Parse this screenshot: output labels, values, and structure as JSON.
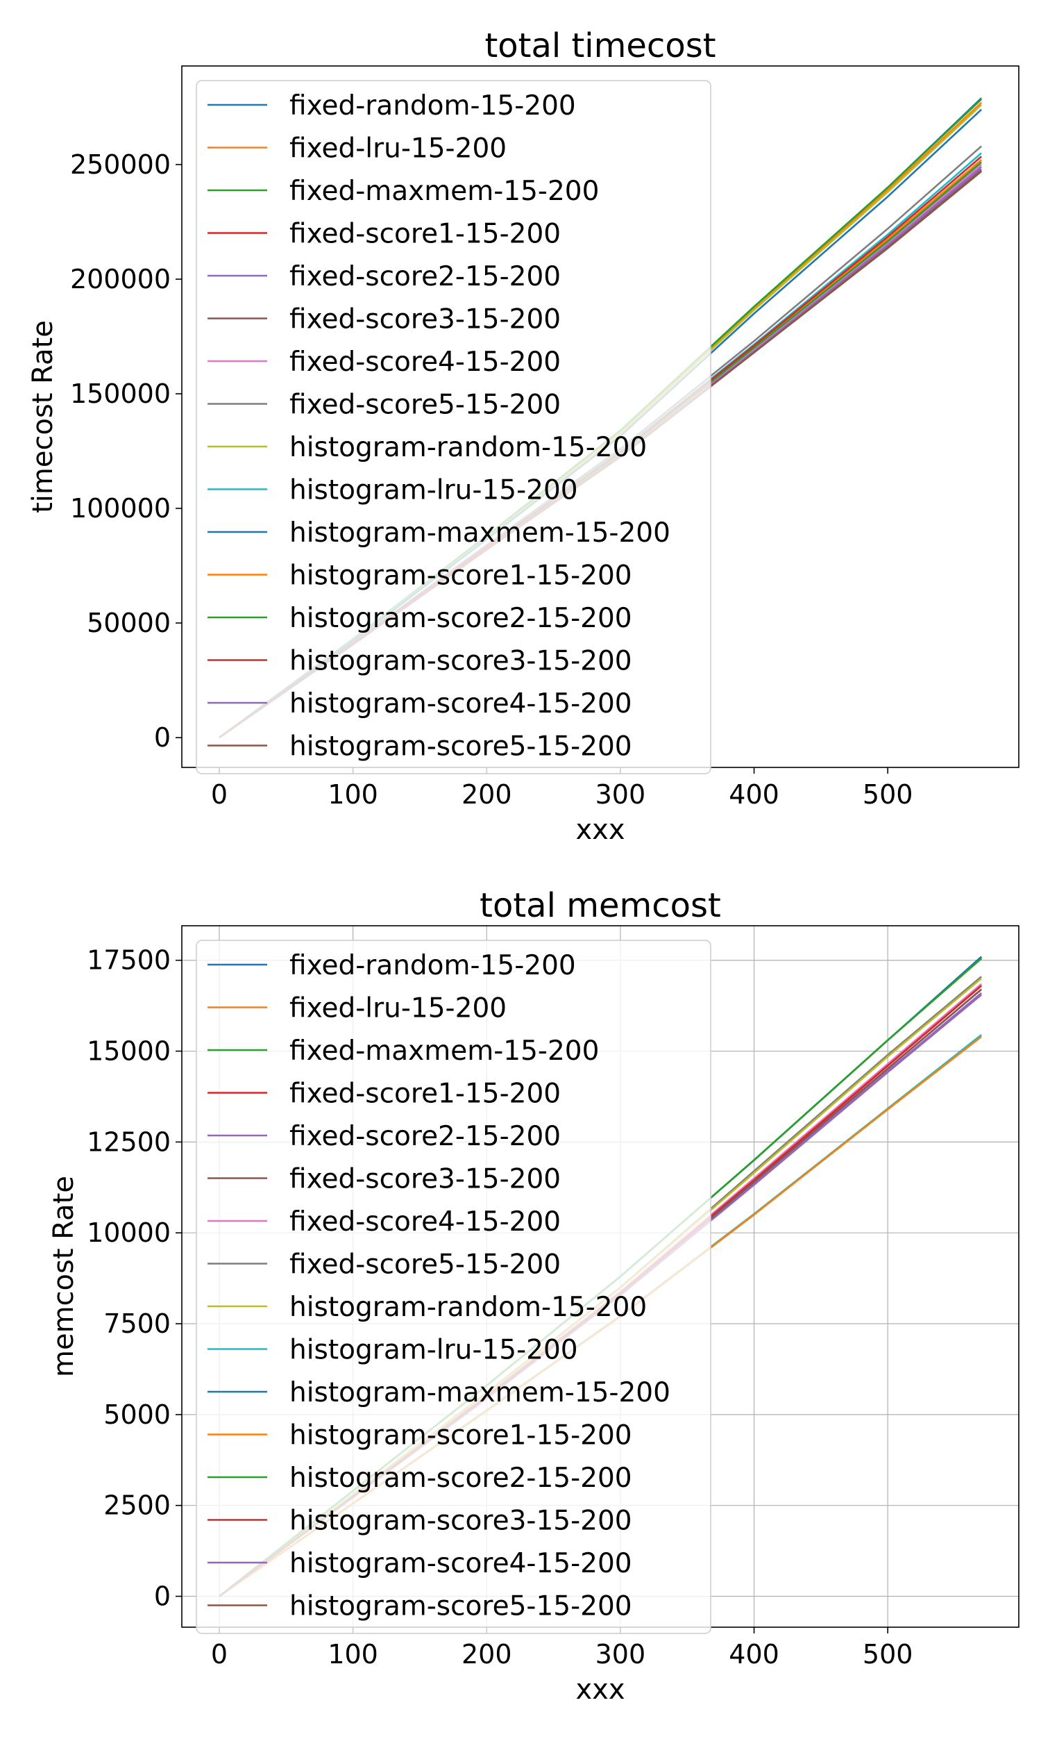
{
  "series_colors": [
    "#1f77b4",
    "#ff7f0e",
    "#2ca02c",
    "#d62728",
    "#9467bd",
    "#8c564b",
    "#e377c2",
    "#7f7f7f",
    "#bcbd22",
    "#17becf",
    "#1f77b4",
    "#ff7f0e",
    "#2ca02c",
    "#d62728",
    "#9467bd",
    "#8c564b"
  ],
  "chart_data": [
    {
      "type": "line",
      "title": "total timecost",
      "xlabel": "xxx",
      "ylabel": "timecost Rate",
      "xlim": [
        -28,
        598
      ],
      "ylim": [
        -13000,
        293000
      ],
      "xticks": [
        0,
        100,
        200,
        300,
        400,
        500
      ],
      "yticks": [
        0,
        50000,
        100000,
        150000,
        200000,
        250000
      ],
      "grid": false,
      "legend_position": "upper left",
      "series": [
        {
          "name": "fixed-random-15-200",
          "x": [
            0,
            100,
            200,
            300,
            400,
            500,
            570
          ],
          "y": [
            0,
            43000,
            88000,
            134000,
            188000,
            240000,
            279000
          ]
        },
        {
          "name": "fixed-lru-15-200",
          "x": [
            0,
            100,
            200,
            300,
            400,
            500,
            570
          ],
          "y": [
            0,
            42800,
            87500,
            133000,
            187000,
            239000,
            277000
          ]
        },
        {
          "name": "fixed-maxmem-15-200",
          "x": [
            0,
            100,
            200,
            300,
            400,
            500,
            570
          ],
          "y": [
            0,
            43000,
            88000,
            134000,
            188000,
            240000,
            278500
          ]
        },
        {
          "name": "fixed-score1-15-200",
          "x": [
            0,
            100,
            200,
            300,
            400,
            500,
            570
          ],
          "y": [
            0,
            41000,
            83000,
            124000,
            170000,
            217000,
            252000
          ]
        },
        {
          "name": "fixed-score2-15-200",
          "x": [
            0,
            100,
            200,
            300,
            400,
            500,
            570
          ],
          "y": [
            0,
            40800,
            82500,
            123000,
            169000,
            215000,
            249000
          ]
        },
        {
          "name": "fixed-score3-15-200",
          "x": [
            0,
            100,
            200,
            300,
            400,
            500,
            570
          ],
          "y": [
            0,
            40600,
            82000,
            122500,
            168000,
            213500,
            247000
          ]
        },
        {
          "name": "fixed-score4-15-200",
          "x": [
            0,
            100,
            200,
            300,
            400,
            500,
            570
          ],
          "y": [
            0,
            40900,
            82700,
            123500,
            169500,
            216000,
            250000
          ]
        },
        {
          "name": "fixed-score5-15-200",
          "x": [
            0,
            100,
            200,
            300,
            400,
            500,
            570
          ],
          "y": [
            0,
            41500,
            84000,
            126000,
            173000,
            222000,
            258000
          ]
        },
        {
          "name": "histogram-random-15-200",
          "x": [
            0,
            100,
            200,
            300,
            400,
            500,
            570
          ],
          "y": [
            0,
            42500,
            87000,
            132500,
            186500,
            238000,
            276000
          ]
        },
        {
          "name": "histogram-lru-15-200",
          "x": [
            0,
            100,
            200,
            300,
            400,
            500,
            570
          ],
          "y": [
            0,
            41200,
            83500,
            125000,
            171500,
            219500,
            255000
          ]
        },
        {
          "name": "histogram-maxmem-15-200",
          "x": [
            0,
            100,
            200,
            300,
            400,
            500,
            570
          ],
          "y": [
            0,
            42300,
            86500,
            131500,
            185000,
            236000,
            274000
          ]
        },
        {
          "name": "histogram-score1-15-200",
          "x": [
            0,
            100,
            200,
            300,
            400,
            500,
            570
          ],
          "y": [
            0,
            41000,
            83000,
            124000,
            170500,
            217500,
            252000
          ]
        },
        {
          "name": "histogram-score2-15-200",
          "x": [
            0,
            100,
            200,
            300,
            400,
            500,
            570
          ],
          "y": [
            0,
            40900,
            82800,
            123800,
            170000,
            216500,
            251000
          ]
        },
        {
          "name": "histogram-score3-15-200",
          "x": [
            0,
            100,
            200,
            300,
            400,
            500,
            570
          ],
          "y": [
            0,
            41100,
            83200,
            124500,
            171000,
            218500,
            253500
          ]
        },
        {
          "name": "histogram-score4-15-200",
          "x": [
            0,
            100,
            200,
            300,
            400,
            500,
            570
          ],
          "y": [
            0,
            40700,
            82200,
            122800,
            168500,
            214500,
            248000
          ]
        },
        {
          "name": "histogram-score5-15-200",
          "x": [
            0,
            100,
            200,
            300,
            400,
            500,
            570
          ],
          "y": [
            0,
            40600,
            82000,
            122500,
            168000,
            213800,
            247500
          ]
        }
      ]
    },
    {
      "type": "line",
      "title": "total memcost",
      "xlabel": "xxx",
      "ylabel": "memcost Rate",
      "xlim": [
        -28,
        598
      ],
      "ylim": [
        -850,
        18450
      ],
      "xticks": [
        0,
        100,
        200,
        300,
        400,
        500
      ],
      "yticks": [
        0,
        2500,
        5000,
        7500,
        10000,
        12500,
        15000,
        17500
      ],
      "grid": true,
      "legend_position": "upper left",
      "series": [
        {
          "name": "fixed-random-15-200",
          "x": [
            0,
            100,
            200,
            300,
            400,
            500,
            570
          ],
          "y": [
            0,
            2900,
            5800,
            8800,
            12000,
            15300,
            17600
          ]
        },
        {
          "name": "fixed-lru-15-200",
          "x": [
            0,
            100,
            200,
            300,
            400,
            500,
            570
          ],
          "y": [
            0,
            2550,
            5100,
            7700,
            10500,
            13400,
            15400
          ]
        },
        {
          "name": "fixed-maxmem-15-200",
          "x": [
            0,
            100,
            200,
            300,
            400,
            500,
            570
          ],
          "y": [
            0,
            2900,
            5800,
            8800,
            12000,
            15300,
            17550
          ]
        },
        {
          "name": "fixed-score1-15-200",
          "x": [
            0,
            100,
            200,
            300,
            400,
            500,
            570
          ],
          "y": [
            0,
            2750,
            5500,
            8350,
            11450,
            14600,
            16800
          ]
        },
        {
          "name": "fixed-score2-15-200",
          "x": [
            0,
            100,
            200,
            300,
            400,
            500,
            570
          ],
          "y": [
            0,
            2730,
            5450,
            8300,
            11350,
            14450,
            16600
          ]
        },
        {
          "name": "fixed-score3-15-200",
          "x": [
            0,
            100,
            200,
            300,
            400,
            500,
            570
          ],
          "y": [
            0,
            2740,
            5480,
            8320,
            11400,
            14520,
            16700
          ]
        },
        {
          "name": "fixed-score4-15-200",
          "x": [
            0,
            100,
            200,
            300,
            400,
            500,
            570
          ],
          "y": [
            0,
            2760,
            5520,
            8380,
            11500,
            14650,
            16850
          ]
        },
        {
          "name": "fixed-score5-15-200",
          "x": [
            0,
            100,
            200,
            300,
            400,
            500,
            570
          ],
          "y": [
            0,
            2800,
            5600,
            8500,
            11700,
            14900,
            17050
          ]
        },
        {
          "name": "histogram-random-15-200",
          "x": [
            0,
            100,
            200,
            300,
            400,
            500,
            570
          ],
          "y": [
            0,
            2790,
            5580,
            8480,
            11650,
            14850,
            17000
          ]
        },
        {
          "name": "histogram-lru-15-200",
          "x": [
            0,
            100,
            200,
            300,
            400,
            500,
            570
          ],
          "y": [
            0,
            2560,
            5120,
            7720,
            10520,
            13420,
            15450
          ]
        },
        {
          "name": "histogram-maxmem-15-200",
          "x": [
            0,
            100,
            200,
            300,
            400,
            500,
            570
          ],
          "y": [
            0,
            2900,
            5800,
            8800,
            12000,
            15300,
            17580
          ]
        },
        {
          "name": "histogram-score1-15-200",
          "x": [
            0,
            100,
            200,
            300,
            400,
            500,
            570
          ],
          "y": [
            0,
            2550,
            5100,
            7700,
            10500,
            13400,
            15400
          ]
        },
        {
          "name": "histogram-score2-15-200",
          "x": [
            0,
            100,
            200,
            300,
            400,
            500,
            570
          ],
          "y": [
            0,
            2900,
            5800,
            8800,
            12000,
            15300,
            17550
          ]
        },
        {
          "name": "histogram-score3-15-200",
          "x": [
            0,
            100,
            200,
            300,
            400,
            500,
            570
          ],
          "y": [
            0,
            2750,
            5500,
            8350,
            11450,
            14600,
            16800
          ]
        },
        {
          "name": "histogram-score4-15-200",
          "x": [
            0,
            100,
            200,
            300,
            400,
            500,
            570
          ],
          "y": [
            0,
            2720,
            5440,
            8280,
            11320,
            14420,
            16550
          ]
        },
        {
          "name": "histogram-score5-15-200",
          "x": [
            0,
            100,
            200,
            300,
            400,
            500,
            570
          ],
          "y": [
            0,
            2740,
            5480,
            8320,
            11400,
            14520,
            16700
          ]
        }
      ]
    }
  ]
}
